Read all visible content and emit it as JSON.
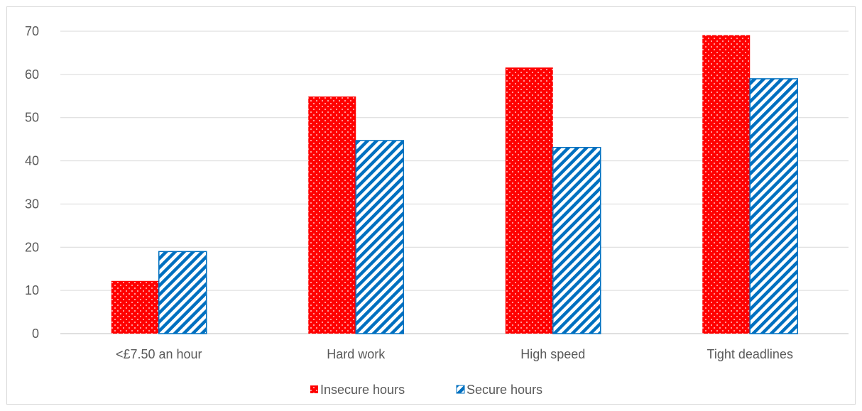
{
  "chart_data": {
    "type": "bar",
    "categories": [
      "<£7.50 an hour",
      "Hard work",
      "High speed",
      "Tight deadlines"
    ],
    "series": [
      {
        "name": "Insecure hours",
        "values": [
          12.2,
          54.9,
          61.6,
          69.1
        ],
        "color": "#ff0000",
        "pattern": "dotted"
      },
      {
        "name": "Secure hours",
        "values": [
          19.0,
          44.7,
          43.1,
          59.0
        ],
        "color": "#0070c0",
        "pattern": "diagonal-stripes"
      }
    ],
    "title": "",
    "xlabel": "",
    "ylabel": "",
    "ylim": [
      0,
      70
    ],
    "yticks": [
      "0",
      "10",
      "20",
      "30",
      "40",
      "50",
      "60",
      "70"
    ],
    "grid": true,
    "legend": "bottom-center"
  }
}
